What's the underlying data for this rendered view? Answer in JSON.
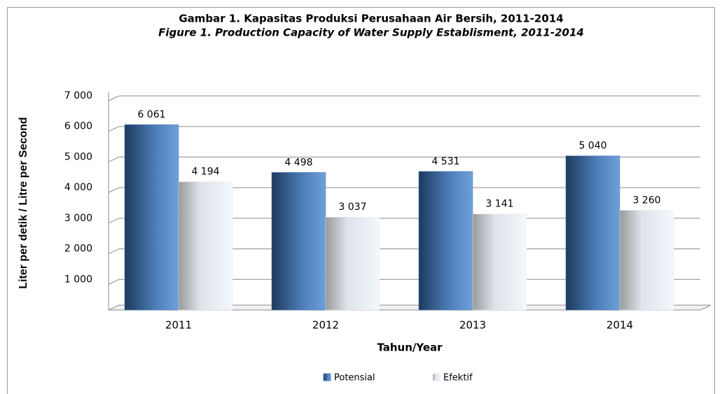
{
  "chart_data": {
    "type": "bar",
    "title": "Gambar 1. Kapasitas Produksi Perusahaan Air Bersih, 2011-2014",
    "subtitle": "Figure 1. Production Capacity of Water Supply Establisment, 2011-2014",
    "xlabel": "Tahun/Year",
    "ylabel": "Liter per detik / Litre per Second",
    "categories": [
      "2011",
      "2012",
      "2013",
      "2014"
    ],
    "series": [
      {
        "name": "Potensial",
        "color": "#4f81bd",
        "values": [
          6061,
          4498,
          4531,
          5040
        ],
        "value_labels": [
          "6 061",
          "4 498",
          "4 531",
          "5 040"
        ]
      },
      {
        "name": "Efektif",
        "color": "#e4ebf3",
        "values": [
          4194,
          3037,
          3141,
          3260
        ],
        "value_labels": [
          "4 194",
          "3 037",
          "3 141",
          "3 260"
        ]
      }
    ],
    "ylim": [
      0,
      7000
    ],
    "yticks": [
      {
        "value": 1000,
        "label": "1 000"
      },
      {
        "value": 2000,
        "label": "2 000"
      },
      {
        "value": 3000,
        "label": "3 000"
      },
      {
        "value": 4000,
        "label": "4 000"
      },
      {
        "value": 5000,
        "label": "5 000"
      },
      {
        "value": 6000,
        "label": "6 000"
      },
      {
        "value": 7000,
        "label": "7 000"
      }
    ],
    "grid": true,
    "legend": "bottom"
  }
}
